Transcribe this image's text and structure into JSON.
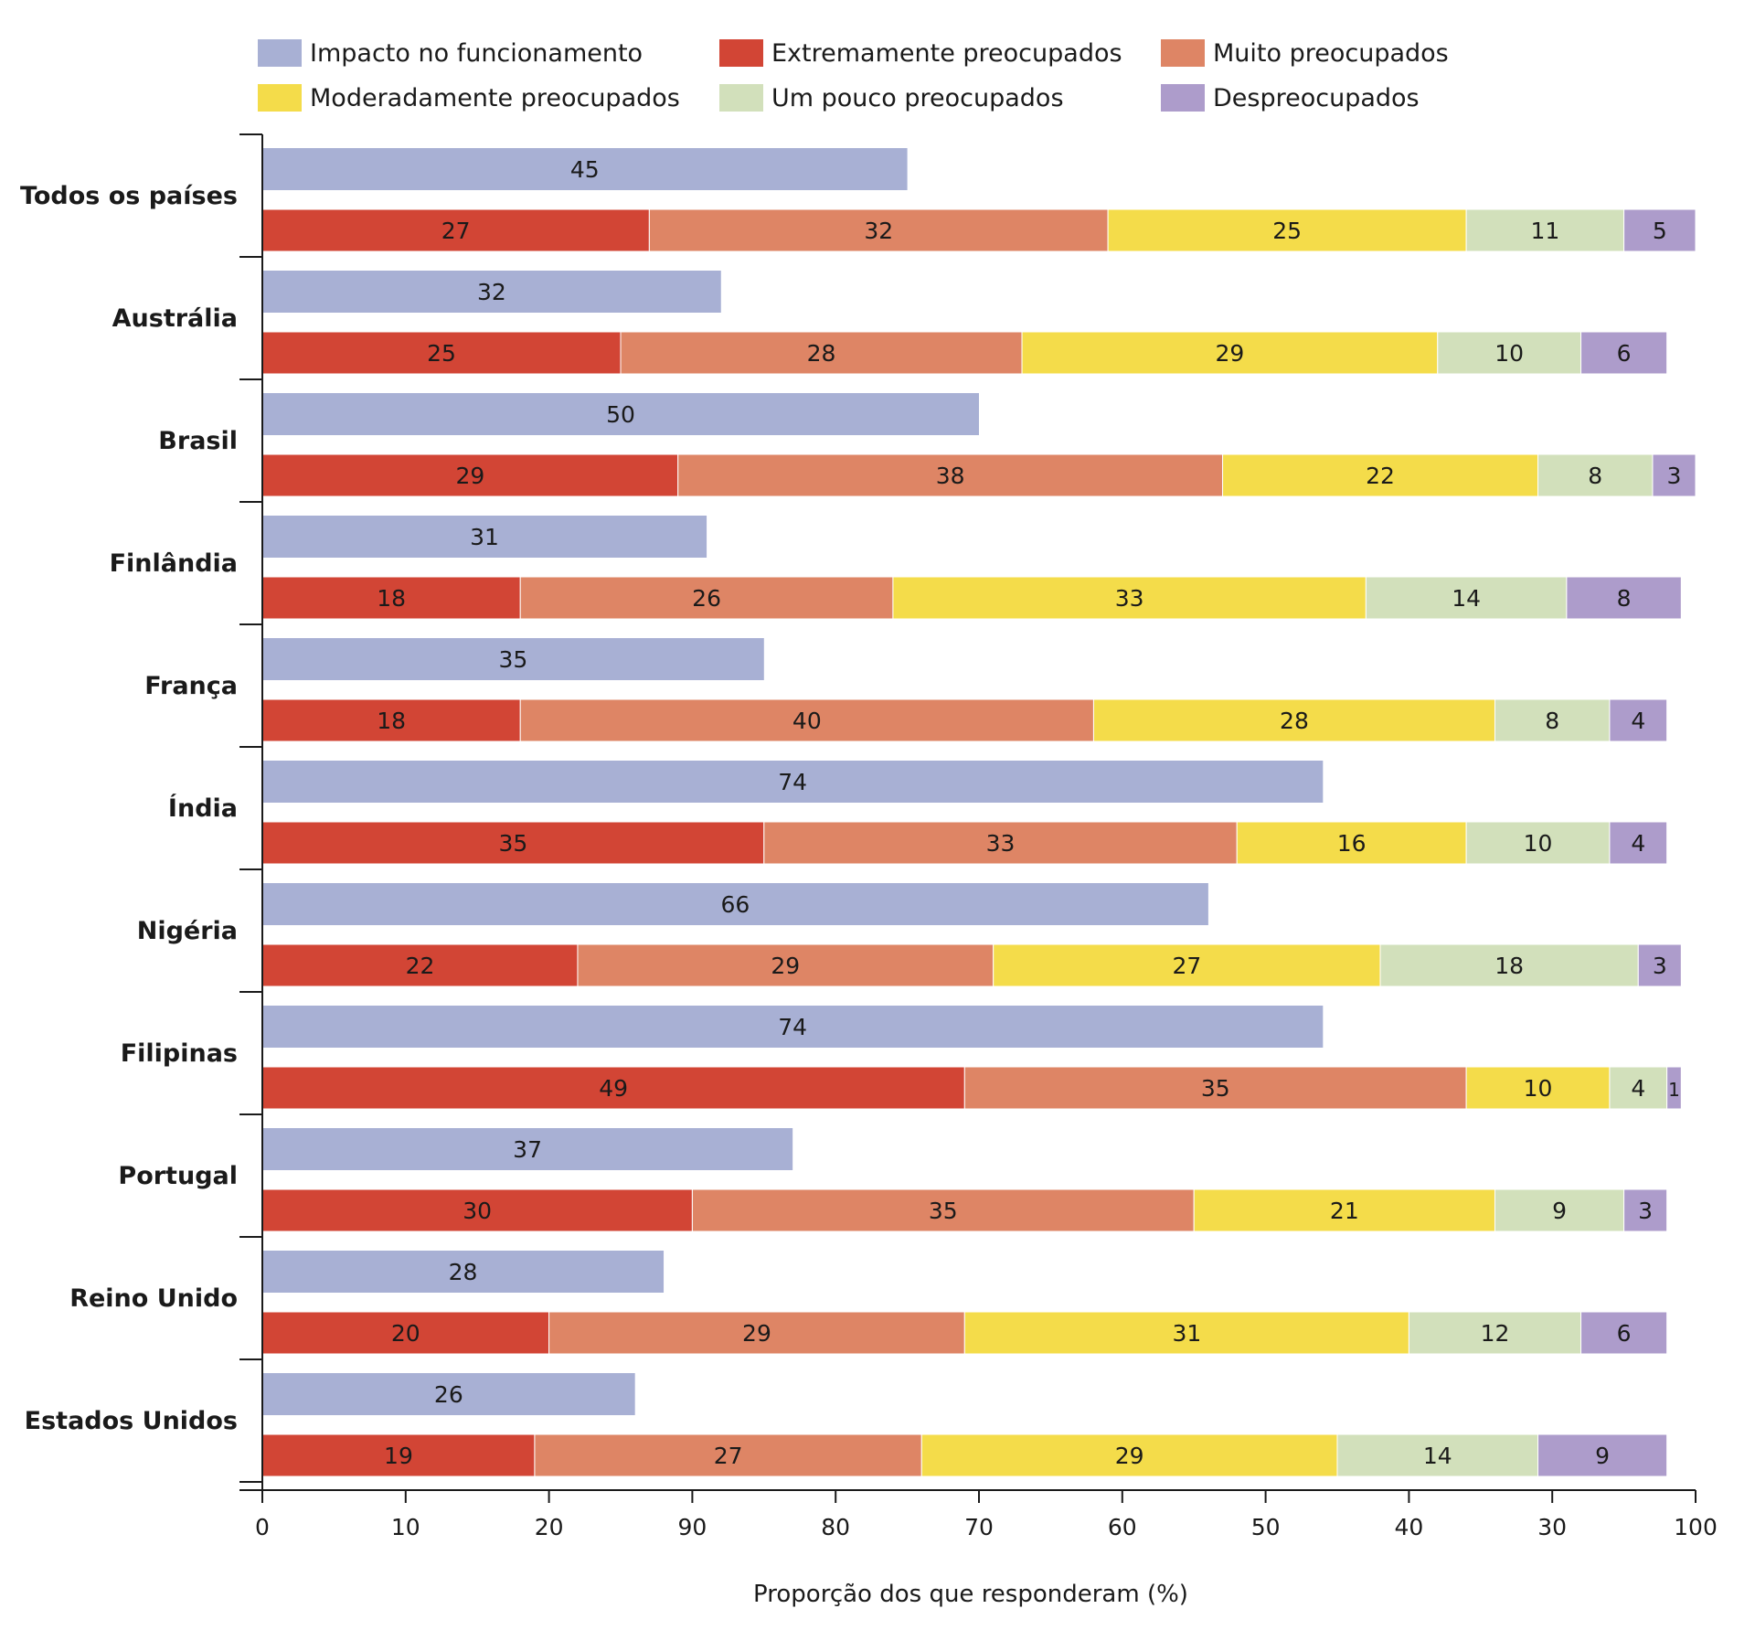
{
  "chart_data": {
    "type": "bar",
    "orientation": "horizontal",
    "stacked": true,
    "categories": [
      "Todos os países",
      "Austrália",
      "Brasil",
      "Finlândia",
      "França",
      "Índia",
      "Nigéria",
      "Filipinas",
      "Portugal",
      "Reino Unido",
      "Estados Unidos"
    ],
    "impact_series": {
      "name": "Impacto no funcionamento",
      "color": "#a8b0d4",
      "values": [
        45,
        32,
        50,
        31,
        35,
        74,
        66,
        74,
        37,
        28,
        26
      ]
    },
    "series": [
      {
        "name": "Extremamente preocupados",
        "color": "#d24535",
        "values": [
          27,
          25,
          29,
          18,
          18,
          35,
          22,
          49,
          30,
          20,
          19
        ]
      },
      {
        "name": "Muito preocupados",
        "color": "#de8565",
        "values": [
          32,
          28,
          38,
          26,
          40,
          33,
          29,
          35,
          35,
          29,
          27
        ]
      },
      {
        "name": "Moderadamente preocupados",
        "color": "#f4dc4a",
        "values": [
          25,
          29,
          22,
          33,
          28,
          16,
          27,
          10,
          21,
          31,
          29
        ]
      },
      {
        "name": "Um pouco preocupados",
        "color": "#d2e0bb",
        "values": [
          11,
          10,
          8,
          14,
          8,
          10,
          18,
          4,
          9,
          12,
          14
        ]
      },
      {
        "name": "Despreocupados",
        "color": "#ad9ccb",
        "values": [
          5,
          6,
          3,
          8,
          4,
          4,
          3,
          1,
          3,
          6,
          9
        ]
      }
    ],
    "xlabel": "Proporção dos que responderam (%)",
    "xticks": [
      "0",
      "10",
      "20",
      "90",
      "80",
      "70",
      "60",
      "50",
      "40",
      "30",
      "100"
    ],
    "xlim": [
      0,
      100
    ],
    "grid": false,
    "legend_position": "top"
  }
}
